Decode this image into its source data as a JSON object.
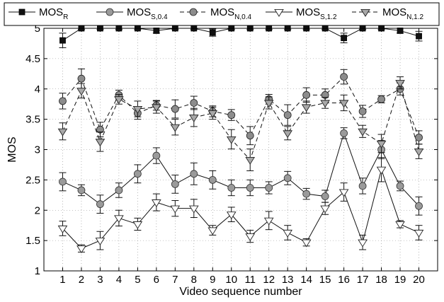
{
  "chart_data": {
    "type": "line",
    "xlabel": "Video sequence number",
    "ylabel": "MOS",
    "xlim": [
      0,
      21
    ],
    "ylim": [
      1,
      5
    ],
    "x_ticks": [
      1,
      2,
      3,
      4,
      5,
      6,
      7,
      8,
      9,
      10,
      11,
      12,
      13,
      14,
      15,
      16,
      17,
      18,
      19,
      20
    ],
    "y_ticks": [
      "1",
      "1.5",
      "2",
      "2.5",
      "3",
      "3.5",
      "4",
      "4.5",
      "5"
    ],
    "grid": true,
    "legend_position": "top",
    "x": [
      1,
      2,
      3,
      4,
      5,
      6,
      7,
      8,
      9,
      10,
      11,
      12,
      13,
      14,
      15,
      16,
      17,
      18,
      19,
      20
    ],
    "series": [
      {
        "name": "MOS",
        "sub": "R",
        "marker": "square",
        "line": "solid",
        "values": [
          4.8,
          5.0,
          5.0,
          5.0,
          5.0,
          4.96,
          5.0,
          5.0,
          4.93,
          5.0,
          5.0,
          5.0,
          5.0,
          5.0,
          5.0,
          4.84,
          5.0,
          5.0,
          4.96,
          4.87
        ],
        "errors": [
          0.12,
          0.02,
          0.02,
          0.02,
          0.02,
          0.04,
          0.02,
          0.02,
          0.06,
          0.02,
          0.02,
          0.02,
          0.02,
          0.02,
          0.02,
          0.08,
          0.02,
          0.02,
          0.04,
          0.08
        ]
      },
      {
        "name": "MOS",
        "sub": "S,0.4",
        "marker": "circle-light",
        "line": "solid",
        "values": [
          2.47,
          2.33,
          2.1,
          2.33,
          2.6,
          2.9,
          2.43,
          2.6,
          2.5,
          2.37,
          2.37,
          2.37,
          2.53,
          2.27,
          2.23,
          3.27,
          2.4,
          3.0,
          2.4,
          2.07
        ],
        "errors": [
          0.15,
          0.09,
          0.15,
          0.12,
          0.15,
          0.13,
          0.15,
          0.18,
          0.15,
          0.13,
          0.13,
          0.1,
          0.11,
          0.09,
          0.1,
          0.09,
          0.13,
          0.15,
          0.08,
          0.15
        ]
      },
      {
        "name": "MOS",
        "sub": "N,0.4",
        "marker": "circle-dark",
        "line": "dashed",
        "values": [
          3.8,
          4.17,
          3.33,
          3.9,
          3.6,
          3.73,
          3.67,
          3.77,
          3.63,
          3.57,
          3.23,
          3.83,
          3.57,
          3.9,
          3.9,
          4.2,
          3.63,
          3.83,
          4.0,
          3.2
        ],
        "errors": [
          0.13,
          0.16,
          0.12,
          0.08,
          0.1,
          0.08,
          0.15,
          0.11,
          0.09,
          0.09,
          0.15,
          0.08,
          0.17,
          0.12,
          0.1,
          0.12,
          0.1,
          0.06,
          0.1,
          0.11
        ]
      },
      {
        "name": "MOS",
        "sub": "S,1.2",
        "marker": "triangle-white",
        "line": "solid",
        "values": [
          1.7,
          1.37,
          1.5,
          1.87,
          1.77,
          2.13,
          2.03,
          2.03,
          1.67,
          1.93,
          1.57,
          1.83,
          1.63,
          1.47,
          2.03,
          2.3,
          1.47,
          2.67,
          1.77,
          1.63
        ],
        "errors": [
          0.12,
          0.06,
          0.15,
          0.13,
          0.1,
          0.14,
          0.13,
          0.15,
          0.08,
          0.12,
          0.1,
          0.15,
          0.12,
          0.06,
          0.1,
          0.15,
          0.12,
          0.2,
          0.06,
          0.12
        ]
      },
      {
        "name": "MOS",
        "sub": "N,1.2",
        "marker": "triangle-gray",
        "line": "dashed",
        "values": [
          3.3,
          3.97,
          3.13,
          3.83,
          3.67,
          3.7,
          3.37,
          3.53,
          3.6,
          3.17,
          2.83,
          3.77,
          3.27,
          3.7,
          3.77,
          3.77,
          3.3,
          3.1,
          4.1,
          2.97
        ],
        "errors": [
          0.14,
          0.12,
          0.16,
          0.08,
          0.13,
          0.1,
          0.13,
          0.15,
          0.1,
          0.16,
          0.18,
          0.1,
          0.11,
          0.1,
          0.09,
          0.13,
          0.1,
          0.15,
          0.1,
          0.12
        ]
      }
    ]
  }
}
